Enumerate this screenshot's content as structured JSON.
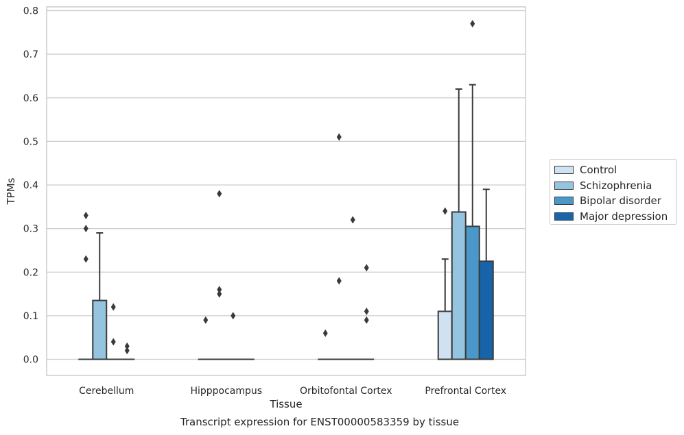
{
  "chart_data": {
    "type": "boxplot",
    "caption": "Transcript expression for ENST00000583359 by tissue",
    "xlabel": "Tissue",
    "ylabel": "TPMs",
    "ylim": [
      -0.037,
      0.812
    ],
    "yticks": [
      "0.0",
      "0.1",
      "0.2",
      "0.3",
      "0.4",
      "0.5",
      "0.6",
      "0.7",
      "0.8"
    ],
    "grid": "horizontal",
    "legend_position": "right",
    "categories": [
      "Cerebellum",
      "Hipppocampus",
      "Orbitofontal Cortex",
      "Prefrontal Cortex"
    ],
    "series": [
      {
        "name": "Control",
        "color": "#d0e1f2",
        "boxes": [
          {
            "q1": 0,
            "median": 0,
            "q3": 0,
            "whisker_low": 0,
            "whisker_high": 0,
            "outliers": [
              0.33,
              0.3,
              0.23
            ]
          },
          {
            "q1": 0,
            "median": 0,
            "q3": 0,
            "whisker_low": 0,
            "whisker_high": 0,
            "outliers": [
              0.09
            ]
          },
          {
            "q1": 0,
            "median": 0,
            "q3": 0,
            "whisker_low": 0,
            "whisker_high": 0,
            "outliers": [
              0.06
            ]
          },
          {
            "q1": 0,
            "median": 0,
            "q3": 0.11,
            "whisker_low": 0,
            "whisker_high": 0.23,
            "outliers": [
              0.34
            ]
          }
        ]
      },
      {
        "name": "Schizophrenia",
        "color": "#94c4df",
        "boxes": [
          {
            "q1": 0,
            "median": 0,
            "q3": 0.135,
            "whisker_low": 0,
            "whisker_high": 0.29,
            "outliers": []
          },
          {
            "q1": 0,
            "median": 0,
            "q3": 0,
            "whisker_low": 0,
            "whisker_high": 0,
            "outliers": [
              0.38,
              0.16,
              0.15
            ]
          },
          {
            "q1": 0,
            "median": 0,
            "q3": 0,
            "whisker_low": 0,
            "whisker_high": 0,
            "outliers": [
              0.51,
              0.18
            ]
          },
          {
            "q1": 0,
            "median": 0,
            "q3": 0.338,
            "whisker_low": 0,
            "whisker_high": 0.62,
            "outliers": []
          }
        ]
      },
      {
        "name": "Bipolar disorder",
        "color": "#4a98c9",
        "boxes": [
          {
            "q1": 0,
            "median": 0,
            "q3": 0,
            "whisker_low": 0,
            "whisker_high": 0,
            "outliers": [
              0.12,
              0.04
            ]
          },
          {
            "q1": 0,
            "median": 0,
            "q3": 0,
            "whisker_low": 0,
            "whisker_high": 0,
            "outliers": [
              0.1
            ]
          },
          {
            "q1": 0,
            "median": 0,
            "q3": 0,
            "whisker_low": 0,
            "whisker_high": 0,
            "outliers": [
              0.32
            ]
          },
          {
            "q1": 0,
            "median": 0,
            "q3": 0.305,
            "whisker_low": 0,
            "whisker_high": 0.63,
            "outliers": [
              0.77
            ]
          }
        ]
      },
      {
        "name": "Major depression",
        "color": "#1764ab",
        "boxes": [
          {
            "q1": 0,
            "median": 0,
            "q3": 0,
            "whisker_low": 0,
            "whisker_high": 0,
            "outliers": [
              0.03,
              0.02
            ]
          },
          {
            "q1": 0,
            "median": 0,
            "q3": 0,
            "whisker_low": 0,
            "whisker_high": 0,
            "outliers": []
          },
          {
            "q1": 0,
            "median": 0,
            "q3": 0,
            "whisker_low": 0,
            "whisker_high": 0,
            "outliers": [
              0.21,
              0.11,
              0.09
            ]
          },
          {
            "q1": 0,
            "median": 0,
            "q3": 0.225,
            "whisker_low": 0,
            "whisker_high": 0.39,
            "outliers": []
          }
        ]
      }
    ]
  },
  "legend": {
    "items": [
      {
        "label": "Control",
        "color": "#d0e1f2"
      },
      {
        "label": "Schizophrenia",
        "color": "#94c4df"
      },
      {
        "label": "Bipolar disorder",
        "color": "#4a98c9"
      },
      {
        "label": "Major depression",
        "color": "#1764ab"
      }
    ]
  },
  "colors": {
    "grid": "#cccccc",
    "frame": "#cccccc",
    "line": "#3a3a3a",
    "text": "#262626"
  }
}
